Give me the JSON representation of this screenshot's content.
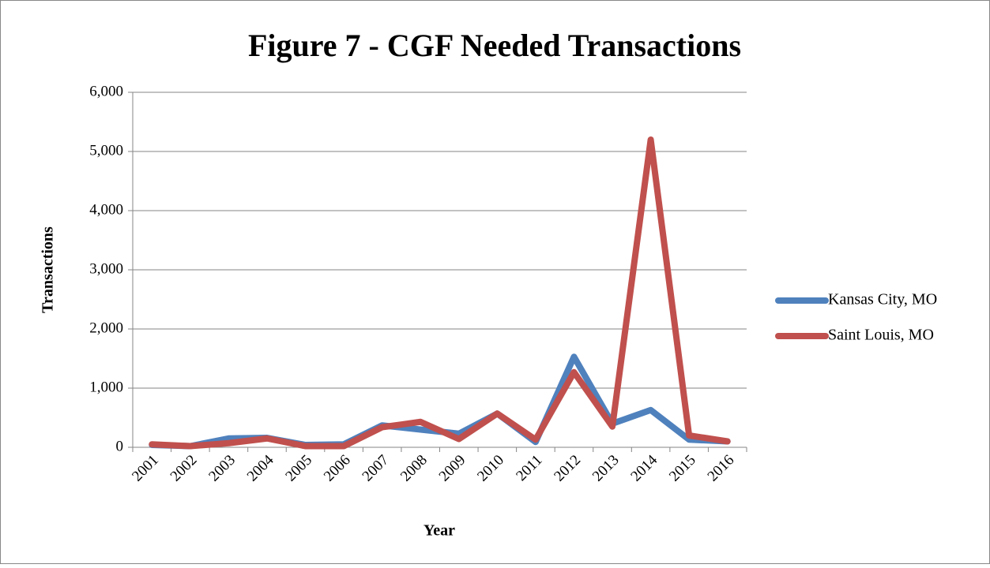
{
  "chart_data": {
    "type": "line",
    "title": "Figure 7 - CGF Needed Transactions",
    "x_label": "Year",
    "y_label": "Transactions",
    "categories": [
      "2001",
      "2002",
      "2003",
      "2004",
      "2005",
      "2006",
      "2007",
      "2008",
      "2009",
      "2010",
      "2011",
      "2012",
      "2013",
      "2014",
      "2015",
      "2016"
    ],
    "series": [
      {
        "name": "Kansas City, MO",
        "color": "#4f81bd",
        "values": [
          40,
          20,
          150,
          160,
          40,
          50,
          370,
          300,
          230,
          570,
          90,
          1530,
          400,
          630,
          130,
          100
        ]
      },
      {
        "name": "Saint Louis, MO",
        "color": "#c0504d",
        "values": [
          50,
          20,
          70,
          150,
          20,
          20,
          340,
          430,
          140,
          570,
          130,
          1270,
          350,
          5200,
          200,
          100
        ]
      }
    ],
    "ylim": [
      0,
      6000
    ],
    "yticks": [
      0,
      {
        "value": 1000,
        "label": "1,000"
      },
      {
        "value": 2000,
        "label": "2,000"
      },
      {
        "value": 3000,
        "label": "3,000"
      },
      {
        "value": 4000,
        "label": "4,000"
      },
      {
        "value": 5000,
        "label": "5,000"
      },
      {
        "value": 6000,
        "label": "6,000"
      }
    ],
    "grid": true,
    "legend": "right"
  }
}
